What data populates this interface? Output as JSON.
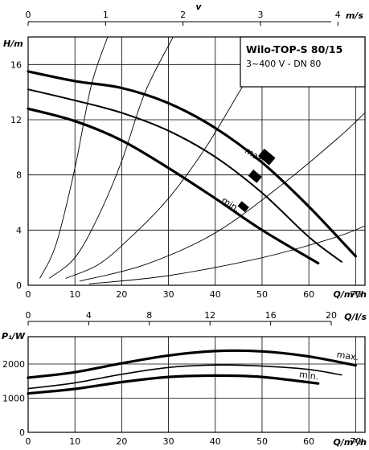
{
  "chart_data": [
    {
      "type": "line",
      "title": "Wilo-TOP-S 80/15",
      "subtitle": "3~400 V - DN 80",
      "xlabel": "Q/m³/h",
      "ylabel": "H/m",
      "top_axis": {
        "label": "v",
        "unit": "m/s",
        "ticks": [
          "0",
          "1",
          "2",
          "3",
          "4"
        ],
        "max_value": 4.35
      },
      "xlim": [
        0,
        72
      ],
      "ylim": [
        0,
        18
      ],
      "x_ticks": [
        "0",
        "10",
        "20",
        "30",
        "40",
        "50",
        "60",
        "70"
      ],
      "y_ticks": [
        "0",
        "4",
        "8",
        "12",
        "16"
      ],
      "grid": true,
      "series": [
        {
          "name": "max.",
          "x": [
            0,
            10,
            20,
            30,
            40,
            50,
            60,
            70
          ],
          "y": [
            15.5,
            14.8,
            14.3,
            13.2,
            11.4,
            8.9,
            5.7,
            2.1
          ]
        },
        {
          "name": "",
          "x": [
            0,
            10,
            20,
            30,
            40,
            50,
            60,
            67
          ],
          "y": [
            14.2,
            13.4,
            12.5,
            11.2,
            9.3,
            6.7,
            3.5,
            1.7
          ]
        },
        {
          "name": "min.",
          "x": [
            0,
            10,
            20,
            30,
            40,
            50,
            62
          ],
          "y": [
            12.8,
            11.9,
            10.5,
            8.5,
            6.3,
            4.0,
            1.6
          ]
        }
      ],
      "system_curves": [
        {
          "x": [
            2.5,
            6,
            10,
            13.5,
            17
          ],
          "y": [
            0.5,
            3,
            8.5,
            14.5,
            18
          ]
        },
        {
          "x": [
            4.5,
            10,
            15,
            20,
            25,
            31
          ],
          "y": [
            0.5,
            2,
            5,
            9,
            14,
            18
          ]
        },
        {
          "x": [
            8,
            15,
            22,
            30,
            38,
            46,
            50
          ],
          "y": [
            0.5,
            1.5,
            3.5,
            6.3,
            10,
            14.5,
            16.5
          ]
        },
        {
          "x": [
            11,
            25,
            40,
            55,
            66,
            72
          ],
          "y": [
            0.3,
            1.5,
            3.8,
            7.5,
            10.6,
            12.5
          ]
        },
        {
          "x": [
            13,
            30,
            50,
            65,
            72
          ],
          "y": [
            0.1,
            0.7,
            2.0,
            3.4,
            4.3
          ]
        }
      ],
      "markers": [
        {
          "label": "max.",
          "x": 51,
          "y": 9.3
        },
        {
          "label": "",
          "x": 48.5,
          "y": 7.9
        },
        {
          "label": "min.",
          "x": 46,
          "y": 5.7
        }
      ]
    },
    {
      "type": "line",
      "xlabel": "Q/m³/h",
      "ylabel": "P₁/W",
      "top_axis": {
        "label": "Q/l/s",
        "ticks": [
          "0",
          "4",
          "8",
          "12",
          "16",
          "20"
        ],
        "max_value": 20
      },
      "xlim": [
        0,
        72
      ],
      "ylim": [
        0,
        2800
      ],
      "x_ticks": [
        "0",
        "10",
        "20",
        "30",
        "40",
        "50",
        "60",
        "70"
      ],
      "y_ticks": [
        "0",
        "1000",
        "2000"
      ],
      "grid": true,
      "series": [
        {
          "name": "max.",
          "x": [
            0,
            10,
            20,
            30,
            40,
            50,
            60,
            70
          ],
          "y": [
            1600,
            1760,
            2020,
            2250,
            2380,
            2370,
            2220,
            1960
          ]
        },
        {
          "name": "",
          "x": [
            0,
            10,
            20,
            30,
            40,
            50,
            60,
            67
          ],
          "y": [
            1280,
            1450,
            1700,
            1900,
            1970,
            1940,
            1840,
            1680
          ]
        },
        {
          "name": "min.",
          "x": [
            0,
            10,
            20,
            30,
            40,
            50,
            62
          ],
          "y": [
            1140,
            1270,
            1470,
            1620,
            1660,
            1620,
            1430
          ]
        }
      ]
    }
  ]
}
